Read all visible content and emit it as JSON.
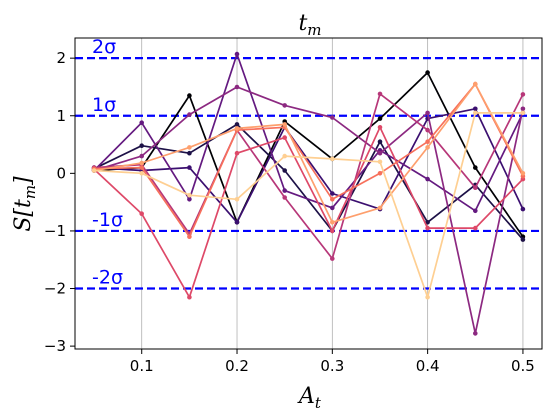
{
  "chart_data": {
    "type": "line",
    "title": "t",
    "title_sub": "m",
    "xlabel": "A",
    "xlabel_sub": "t",
    "ylabel": "S[t",
    "ylabel_sub": "m",
    "ylabel_end": "]",
    "xlim": [
      0.03,
      0.52
    ],
    "ylim": [
      -3.05,
      2.35
    ],
    "xticks": [
      0.1,
      0.2,
      0.3,
      0.4,
      0.5
    ],
    "xtick_labels": [
      "0.1",
      "0.2",
      "0.3",
      "0.4",
      "0.5"
    ],
    "yticks": [
      -3,
      -2,
      -1,
      0,
      1,
      2
    ],
    "ytick_labels": [
      "−3",
      "−2",
      "−1",
      "0",
      "1",
      "2"
    ],
    "grid": "vertical",
    "x": [
      0.05,
      0.1,
      0.15,
      0.2,
      0.25,
      0.3,
      0.35,
      0.4,
      0.45,
      0.5
    ],
    "sigma_lines": [
      {
        "value": 2,
        "label": "2σ"
      },
      {
        "value": 1,
        "label": "1σ"
      },
      {
        "value": -1,
        "label": "-1σ"
      },
      {
        "value": -2,
        "label": "-2σ"
      }
    ],
    "series": [
      {
        "color": "#000004",
        "values": [
          0.05,
          0.1,
          1.35,
          -0.85,
          0.9,
          0.25,
          0.95,
          1.75,
          0.1,
          -1.1
        ]
      },
      {
        "color": "#1d1147",
        "values": [
          0.08,
          0.48,
          0.35,
          0.85,
          0.05,
          -1.0,
          0.55,
          -0.85,
          -0.2,
          -1.15
        ]
      },
      {
        "color": "#3b0f70",
        "values": [
          0.1,
          0.05,
          0.1,
          -0.85,
          0.8,
          -0.35,
          -0.62,
          0.95,
          1.12,
          -0.62
        ]
      },
      {
        "color": "#641a80",
        "values": [
          0.05,
          0.88,
          -0.45,
          2.07,
          -0.3,
          -0.6,
          0.4,
          -0.1,
          -0.65,
          1.05
        ]
      },
      {
        "color": "#8c2981",
        "values": [
          0.05,
          0.3,
          1.02,
          1.5,
          1.18,
          0.97,
          0.35,
          1.05,
          -2.78,
          1.12
        ]
      },
      {
        "color": "#b73779",
        "values": [
          0.1,
          0.15,
          -1.05,
          0.75,
          -0.42,
          -1.48,
          1.38,
          0.75,
          -0.25,
          1.37
        ]
      },
      {
        "color": "#de4968",
        "values": [
          0.07,
          -0.7,
          -2.15,
          0.35,
          0.62,
          -1.0,
          0.8,
          -0.95,
          -0.95,
          -0.1
        ]
      },
      {
        "color": "#f7705c",
        "values": [
          0.08,
          0.1,
          -1.1,
          0.75,
          0.8,
          -0.45,
          0.0,
          0.55,
          1.55,
          -0.05
        ]
      },
      {
        "color": "#fe9f6d",
        "values": [
          0.05,
          0.18,
          0.45,
          0.78,
          0.85,
          -0.85,
          -0.6,
          0.45,
          1.55,
          0.0
        ]
      },
      {
        "color": "#fecf92",
        "values": [
          0.05,
          0.0,
          -0.38,
          -0.45,
          0.3,
          0.25,
          0.2,
          -2.15,
          1.05,
          1.05
        ]
      }
    ]
  }
}
